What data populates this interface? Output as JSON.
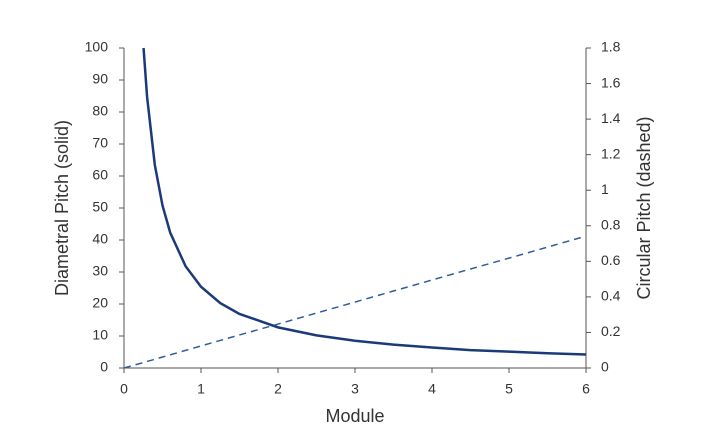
{
  "chart_data": {
    "type": "line",
    "xlabel": "Module",
    "ylabel": "Diametral Pitch (solid)",
    "y2label": "Circular Pitch (dashed)",
    "x": [
      0,
      0.254,
      0.3,
      0.4,
      0.5,
      0.6,
      0.8,
      1,
      1.25,
      1.5,
      2,
      2.5,
      3,
      3.5,
      4,
      4.5,
      5,
      5.5,
      6
    ],
    "series": [
      {
        "color": "#1b3a78",
        "style": "solid",
        "values": [
          null,
          100,
          84.7,
          63.5,
          50.8,
          42.3,
          31.8,
          25.4,
          20.3,
          16.9,
          12.7,
          10.2,
          8.5,
          7.3,
          6.4,
          5.6,
          5.1,
          4.6,
          4.2
        ]
      },
      {
        "color": "#2e5d9a",
        "style": "dashed",
        "axis": "y2",
        "values": [
          0,
          0.031,
          0.037,
          0.049,
          0.062,
          0.074,
          0.099,
          0.124,
          0.155,
          0.186,
          0.247,
          0.309,
          0.371,
          0.433,
          0.495,
          0.557,
          0.618,
          0.68,
          0.742
        ]
      }
    ],
    "xlim": [
      0,
      6
    ],
    "xticks": [
      0,
      1,
      2,
      3,
      4,
      5,
      6
    ],
    "ylim": [
      0,
      100
    ],
    "yticks": [
      0,
      10,
      20,
      30,
      40,
      50,
      60,
      70,
      80,
      90,
      100
    ],
    "y2lim": [
      0,
      1.8
    ],
    "y2ticks": [
      0,
      0.2,
      0.4,
      0.6,
      0.8,
      1,
      1.2,
      1.4,
      1.6,
      1.8
    ],
    "grid": false
  }
}
